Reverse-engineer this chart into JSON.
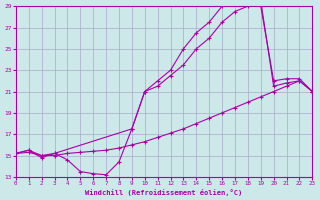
{
  "xlabel": "Windchill (Refroidissement éolien,°C)",
  "bg_color": "#cce8e8",
  "grid_color": "#aaaacc",
  "line_color": "#aa00aa",
  "x_min": 0,
  "x_max": 23,
  "y_min": 13,
  "y_max": 29,
  "y_ticks": [
    13,
    15,
    17,
    19,
    21,
    23,
    25,
    27,
    29
  ],
  "x_ticks": [
    0,
    1,
    2,
    3,
    4,
    5,
    6,
    7,
    8,
    9,
    10,
    11,
    12,
    13,
    14,
    15,
    16,
    17,
    18,
    19,
    20,
    21,
    22,
    23
  ],
  "curve1_x": [
    0,
    1,
    2,
    3,
    4,
    5,
    6,
    7,
    8,
    9,
    10,
    11,
    12,
    13,
    14,
    15,
    16,
    17,
    18,
    19,
    20,
    21,
    22,
    23
  ],
  "curve1_y": [
    15.2,
    15.5,
    14.8,
    15.2,
    14.6,
    13.5,
    13.3,
    13.2,
    14.4,
    17.5,
    21.0,
    22.0,
    23.0,
    25.0,
    26.5,
    27.5,
    29.0,
    29.5,
    29.5,
    29.5,
    21.5,
    21.8,
    22.0,
    21.0
  ],
  "curve2_x": [
    0,
    1,
    2,
    3,
    9,
    10,
    11,
    12,
    13,
    14,
    15,
    16,
    17,
    18,
    19,
    20,
    21,
    22,
    23
  ],
  "curve2_y": [
    15.2,
    15.5,
    15.0,
    15.2,
    17.5,
    21.0,
    21.5,
    22.5,
    23.5,
    25.0,
    26.0,
    27.5,
    28.5,
    29.0,
    29.0,
    22.0,
    22.2,
    22.2,
    21.0
  ],
  "curve3_x": [
    0,
    1,
    2,
    3,
    4,
    5,
    6,
    7,
    8,
    9,
    10,
    11,
    12,
    13,
    14,
    15,
    16,
    17,
    18,
    19,
    20,
    21,
    22,
    23
  ],
  "curve3_y": [
    15.2,
    15.3,
    15.0,
    15.0,
    15.2,
    15.3,
    15.4,
    15.5,
    15.7,
    16.0,
    16.3,
    16.7,
    17.1,
    17.5,
    18.0,
    18.5,
    19.0,
    19.5,
    20.0,
    20.5,
    21.0,
    21.5,
    22.0,
    21.0
  ]
}
